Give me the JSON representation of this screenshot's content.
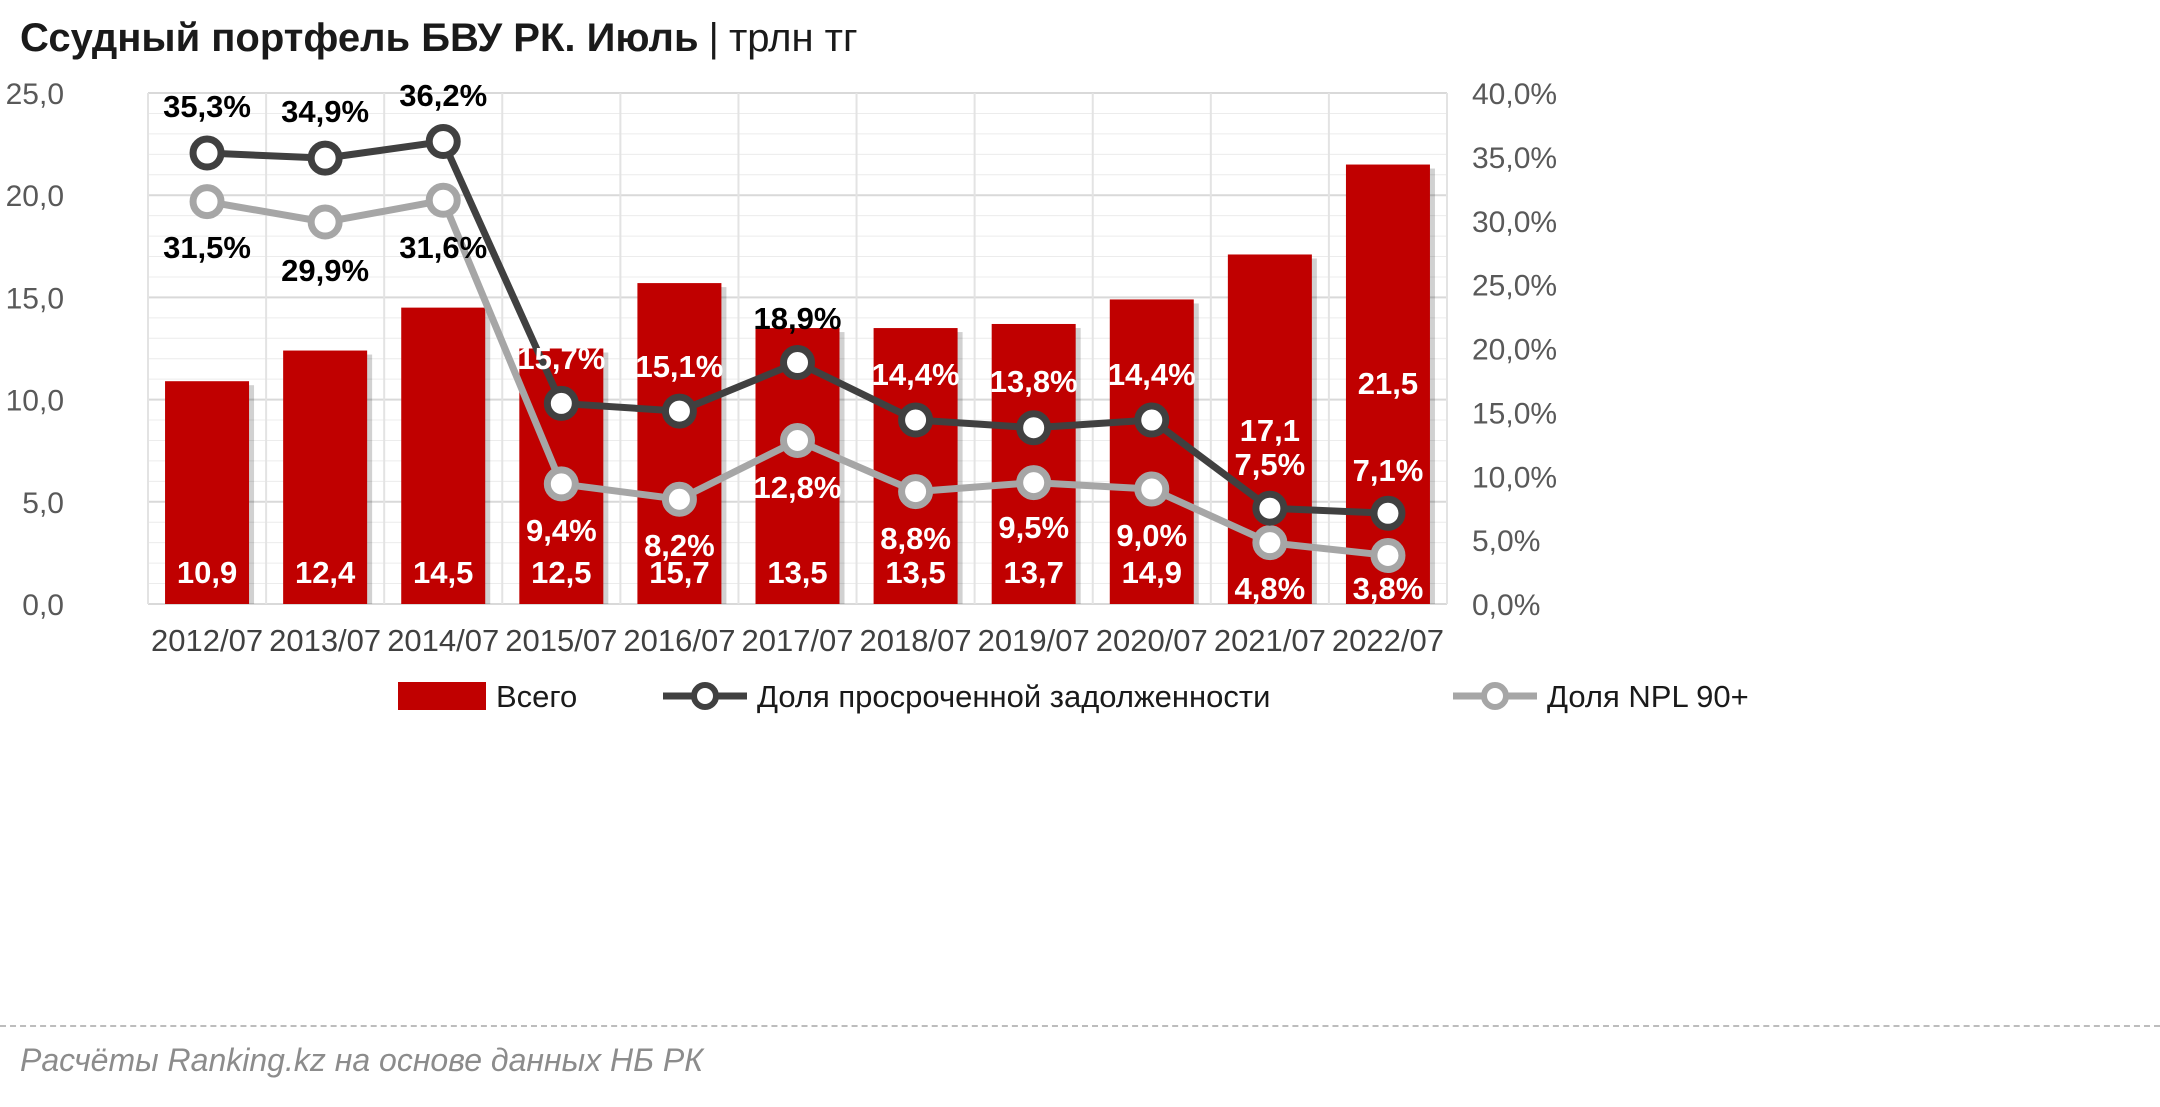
{
  "title": {
    "main": "Ссудный портфель БВУ РК. Июль",
    "separator": "|",
    "unit": "трлн тг"
  },
  "source": "Расчёты Ranking.kz на основе данных НБ РК",
  "colors": {
    "bar": "#c00000",
    "overdue_line": "#404040",
    "npl_line": "#a6a6a6",
    "grid": "#d9d9d9"
  },
  "chart_data": {
    "type": "bar",
    "categories": [
      "2012/07",
      "2013/07",
      "2014/07",
      "2015/07",
      "2016/07",
      "2017/07",
      "2018/07",
      "2019/07",
      "2020/07",
      "2021/07",
      "2022/07"
    ],
    "series": [
      {
        "name": "Всего",
        "type": "bar",
        "axis": "left",
        "values": [
          10.9,
          12.4,
          14.5,
          12.5,
          15.7,
          13.5,
          13.5,
          13.7,
          14.9,
          17.1,
          21.5
        ],
        "labels": [
          "10,9",
          "12,4",
          "14,5",
          "12,5",
          "15,7",
          "13,5",
          "13,5",
          "13,7",
          "14,9",
          "17,1",
          "21,5"
        ]
      },
      {
        "name": "Доля просроченной задолженности",
        "type": "line",
        "axis": "right",
        "values": [
          35.3,
          34.9,
          36.2,
          15.7,
          15.1,
          18.9,
          14.4,
          13.8,
          14.4,
          7.5,
          7.1
        ],
        "labels": [
          "35,3%",
          "34,9%",
          "36,2%",
          "15,7%",
          "15,1%",
          "18,9%",
          "14,4%",
          "13,8%",
          "14,4%",
          "7,5%",
          "7,1%"
        ]
      },
      {
        "name": "Доля NPL 90+",
        "type": "line",
        "axis": "right",
        "values": [
          31.5,
          29.9,
          31.6,
          9.4,
          8.2,
          12.8,
          8.8,
          9.5,
          9.0,
          4.8,
          3.8
        ],
        "labels": [
          "31,5%",
          "29,9%",
          "31,6%",
          "9,4%",
          "8,2%",
          "12,8%",
          "8,8%",
          "9,5%",
          "9,0%",
          "4,8%",
          "3,8%"
        ]
      }
    ],
    "y_left": {
      "min": 0,
      "max": 25,
      "step": 5,
      "tick_labels": [
        "0,0",
        "5,0",
        "10,0",
        "15,0",
        "20,0",
        "25,0"
      ]
    },
    "y_right": {
      "min": 0,
      "max": 40,
      "step": 5,
      "tick_labels": [
        "0,0%",
        "5,0%",
        "10,0%",
        "15,0%",
        "20,0%",
        "25,0%",
        "30,0%",
        "35,0%",
        "40,0%"
      ]
    },
    "grid": true,
    "legend": "bottom"
  }
}
